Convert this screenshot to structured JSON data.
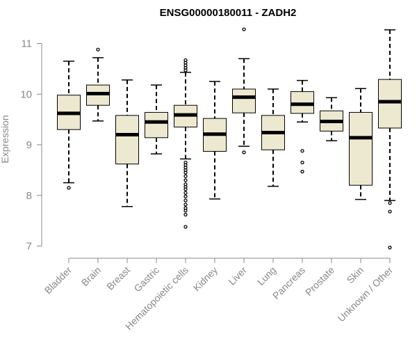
{
  "chart_data": {
    "type": "boxplot",
    "title": "ENSG00000180011 - ZADH2",
    "ylabel": "Expression",
    "xlabel": "",
    "ylim": [
      7,
      11.3
    ],
    "yticks": [
      7,
      8,
      9,
      10,
      11
    ],
    "grid": false,
    "colors": {
      "box_fill": "#ede8d0",
      "stroke": "#000000",
      "axis": "#888888"
    },
    "categories": [
      "Bladder",
      "Brain",
      "Breast",
      "Gastric",
      "Hematopoietic cells",
      "Kidney",
      "Liver",
      "Lung",
      "Pancreas",
      "Prostate",
      "Skin",
      "Unknown / Other"
    ],
    "boxes": [
      {
        "q1": 9.3,
        "median": 9.62,
        "q3": 9.98,
        "whisker_low": 8.25,
        "whisker_high": 10.65,
        "outliers": [
          8.15
        ]
      },
      {
        "q1": 9.78,
        "median": 10.01,
        "q3": 10.18,
        "whisker_low": 9.47,
        "whisker_high": 10.72,
        "outliers": [
          10.88
        ]
      },
      {
        "q1": 8.62,
        "median": 9.2,
        "q3": 9.58,
        "whisker_low": 7.78,
        "whisker_high": 10.28,
        "outliers": []
      },
      {
        "q1": 9.14,
        "median": 9.45,
        "q3": 9.64,
        "whisker_low": 8.82,
        "whisker_high": 10.18,
        "outliers": []
      },
      {
        "q1": 9.35,
        "median": 9.59,
        "q3": 9.78,
        "whisker_low": 8.72,
        "whisker_high": 10.43,
        "outliers": [
          10.67,
          10.62,
          10.57,
          10.52,
          10.47,
          8.65,
          8.6,
          8.55,
          8.5,
          8.45,
          8.38,
          8.3,
          8.22,
          8.17,
          8.12,
          8.05,
          7.98,
          7.9,
          7.82,
          7.75,
          7.7,
          7.62,
          7.38
        ]
      },
      {
        "q1": 8.87,
        "median": 9.21,
        "q3": 9.52,
        "whisker_low": 7.93,
        "whisker_high": 10.25,
        "outliers": []
      },
      {
        "q1": 9.63,
        "median": 9.94,
        "q3": 10.1,
        "whisker_low": 8.97,
        "whisker_high": 10.7,
        "outliers": [
          11.28,
          8.85
        ]
      },
      {
        "q1": 8.9,
        "median": 9.24,
        "q3": 9.58,
        "whisker_low": 8.18,
        "whisker_high": 10.1,
        "outliers": []
      },
      {
        "q1": 9.62,
        "median": 9.8,
        "q3": 10.05,
        "whisker_low": 9.45,
        "whisker_high": 10.27,
        "outliers": [
          8.88,
          8.65,
          8.47
        ]
      },
      {
        "q1": 9.27,
        "median": 9.46,
        "q3": 9.67,
        "whisker_low": 9.08,
        "whisker_high": 9.93,
        "outliers": []
      },
      {
        "q1": 8.2,
        "median": 9.14,
        "q3": 9.64,
        "whisker_low": 7.92,
        "whisker_high": 10.11,
        "outliers": []
      },
      {
        "q1": 9.33,
        "median": 9.85,
        "q3": 10.29,
        "whisker_low": 7.9,
        "whisker_high": 11.27,
        "outliers": [
          7.85,
          7.68,
          6.97
        ]
      }
    ]
  }
}
